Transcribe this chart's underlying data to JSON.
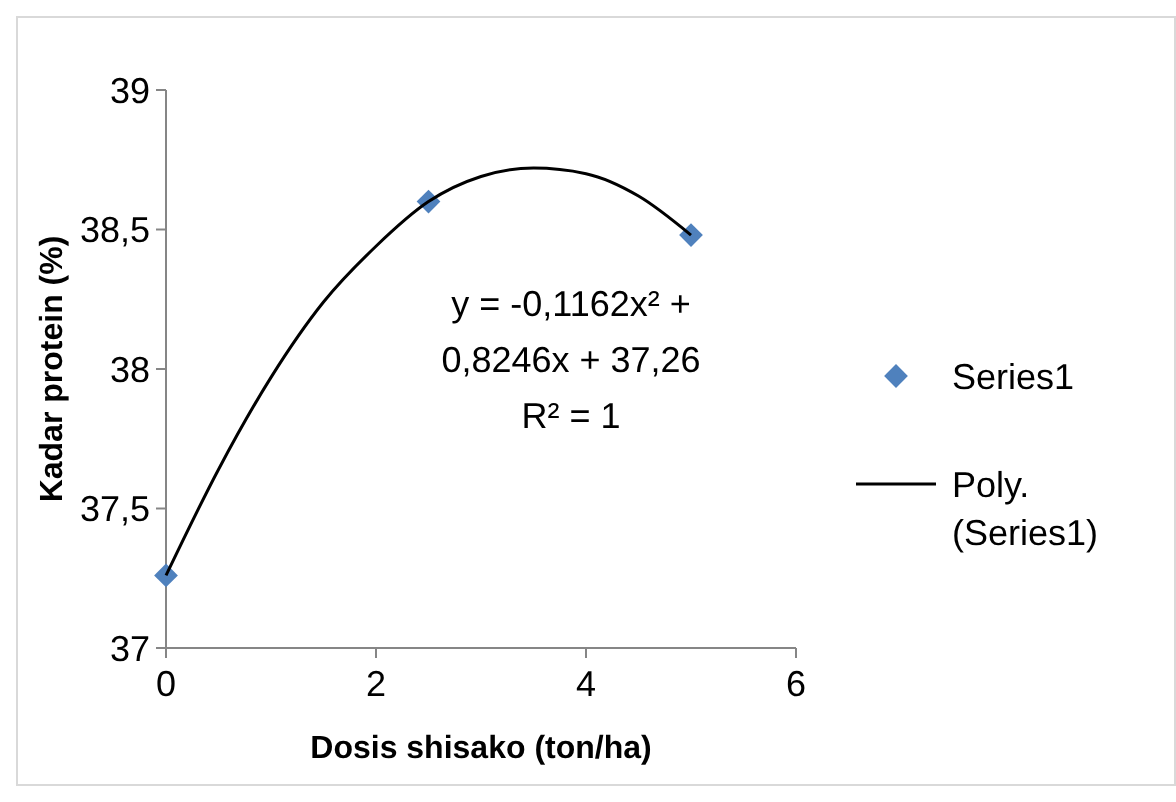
{
  "chart_data": {
    "type": "scatter",
    "xlabel": "Dosis shisako (ton/ha)",
    "ylabel": "Kadar protein (%)",
    "xlim": [
      0,
      6
    ],
    "xticks": [
      0,
      2,
      4,
      6
    ],
    "ylim": [
      37,
      39
    ],
    "yticks": [
      37,
      {
        "value": 37.5,
        "label": "37,5"
      },
      38,
      {
        "value": 38.5,
        "label": "38,5"
      },
      39
    ],
    "grid": false,
    "legend": "right",
    "series": [
      {
        "name": "Series1",
        "marker": "diamond",
        "color": "#4f81bd",
        "x": [
          0,
          2.5,
          5
        ],
        "values": [
          37.26,
          38.6,
          38.48
        ]
      },
      {
        "name": "Poly. (Series1)",
        "type": "line",
        "marker": "none",
        "line_style": "solid",
        "color": "#000000",
        "x": [
          0,
          0.5,
          1,
          1.5,
          2,
          2.5,
          3,
          3.5,
          4,
          4.5,
          5
        ],
        "values": [
          37.26,
          37.64,
          37.97,
          38.24,
          38.44,
          38.6,
          38.69,
          38.72,
          38.7,
          38.62,
          38.48
        ]
      }
    ],
    "annotations": [
      "y = -0,1162x² +",
      "0,8246x + 37,26",
      "R² = 1"
    ]
  }
}
